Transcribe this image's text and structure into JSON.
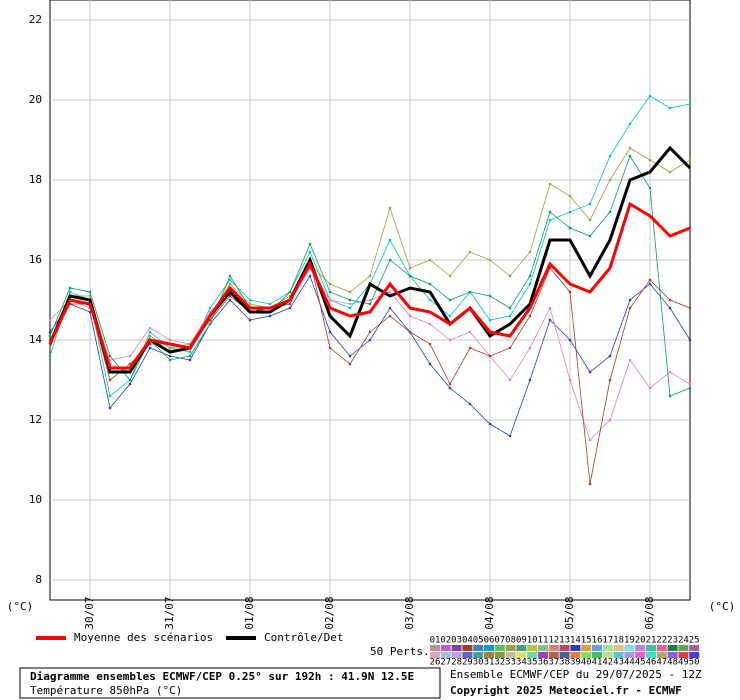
{
  "chart_data": {
    "type": "line",
    "ylabel_left": "(°C)",
    "ylabel_right": "(°C)",
    "categories": [
      null,
      null,
      "30/07",
      null,
      null,
      null,
      "31/07",
      null,
      null,
      null,
      "01/08",
      null,
      null,
      null,
      "02/08",
      null,
      null,
      null,
      "03/08",
      null,
      null,
      null,
      "04/08",
      null,
      null,
      null,
      "05/08",
      null,
      null,
      null,
      "06/08",
      null,
      null
    ],
    "ylim": [
      7.5,
      22.5
    ],
    "yticks": [
      8,
      10,
      12,
      14,
      16,
      18,
      20,
      22
    ],
    "grid": true,
    "series": [
      {
        "name": "01",
        "color": "#00c0c0",
        "values": [
          13.6,
          15.2,
          15.0,
          12.6,
          13.0,
          14.2,
          13.8,
          13.7,
          14.8,
          15.5,
          15.0,
          14.9,
          15.2,
          16.2,
          15.0,
          14.8,
          15.4,
          16.5,
          15.6,
          15.0,
          14.6,
          15.2,
          14.5,
          14.6,
          15.4,
          17.0,
          17.2,
          17.4,
          18.6,
          19.4,
          20.1,
          19.8,
          19.9
        ]
      },
      {
        "name": "02",
        "color": "#2040c0",
        "values": [
          14.2,
          14.9,
          14.7,
          12.3,
          12.9,
          13.8,
          13.6,
          13.5,
          14.4,
          15.0,
          14.5,
          14.6,
          14.8,
          15.6,
          14.2,
          13.6,
          14.0,
          14.8,
          14.2,
          13.4,
          12.8,
          12.4,
          11.9,
          11.6,
          13.0,
          14.5,
          14.0,
          13.2,
          13.6,
          15.0,
          15.4,
          14.8,
          14.0
        ]
      },
      {
        "name": "03",
        "color": "#e080c0",
        "values": [
          14.5,
          15.0,
          14.8,
          13.5,
          13.6,
          14.3,
          14.0,
          13.9,
          14.7,
          15.2,
          14.8,
          14.7,
          15.0,
          15.8,
          15.0,
          14.9,
          15.0,
          15.2,
          14.6,
          14.4,
          14.0,
          14.2,
          13.6,
          13.0,
          13.8,
          14.8,
          13.0,
          11.5,
          12.0,
          13.5,
          12.8,
          13.2,
          12.9
        ]
      },
      {
        "name": "04",
        "color": "#a0a040",
        "values": [
          13.8,
          15.1,
          15.1,
          13.4,
          13.2,
          14.1,
          13.8,
          13.9,
          14.6,
          15.4,
          14.9,
          14.8,
          15.1,
          15.9,
          15.4,
          15.2,
          15.6,
          17.3,
          15.8,
          16.0,
          15.6,
          16.2,
          16.0,
          15.6,
          16.2,
          17.9,
          17.6,
          17.0,
          18.0,
          18.8,
          18.5,
          18.2,
          18.5
        ]
      },
      {
        "name": "05",
        "color": "#a04020",
        "values": [
          14.0,
          14.9,
          14.9,
          13.0,
          13.4,
          13.9,
          13.9,
          13.8,
          14.5,
          15.1,
          14.7,
          14.8,
          14.9,
          16.0,
          13.8,
          13.4,
          14.2,
          14.6,
          14.2,
          13.9,
          12.9,
          13.8,
          13.6,
          13.8,
          14.6,
          15.8,
          15.2,
          10.4,
          13.0,
          14.8,
          15.5,
          15.0,
          14.8
        ]
      },
      {
        "name": "06",
        "color": "#00a060",
        "values": [
          14.1,
          15.3,
          15.2,
          13.6,
          13.0,
          14.0,
          13.5,
          13.6,
          14.4,
          15.6,
          14.8,
          14.7,
          15.2,
          16.4,
          15.2,
          15.0,
          14.9,
          16.0,
          15.6,
          15.4,
          15.0,
          15.2,
          15.1,
          14.8,
          15.6,
          17.2,
          16.8,
          16.6,
          17.2,
          18.6,
          17.8,
          12.6,
          12.8
        ]
      },
      {
        "name": "Contrôle/Det",
        "color": "#000000",
        "values": [
          13.9,
          15.1,
          15.0,
          13.2,
          13.2,
          14.0,
          13.7,
          13.8,
          14.6,
          15.2,
          14.7,
          14.7,
          15.0,
          16.0,
          14.6,
          14.1,
          15.4,
          15.1,
          15.3,
          15.2,
          14.4,
          14.8,
          14.1,
          14.4,
          14.9,
          16.5,
          16.5,
          15.6,
          16.5,
          18.0,
          18.2,
          18.8,
          18.3
        ]
      },
      {
        "name": "Moyenne des scénarios",
        "color": "#ff0000",
        "values": [
          13.9,
          15.0,
          14.9,
          13.3,
          13.3,
          14.0,
          13.9,
          13.8,
          14.6,
          15.3,
          14.8,
          14.8,
          15.0,
          15.9,
          14.8,
          14.6,
          14.7,
          15.4,
          14.8,
          14.7,
          14.4,
          14.8,
          14.2,
          14.1,
          14.8,
          15.9,
          15.4,
          15.2,
          15.8,
          17.4,
          17.1,
          16.6,
          16.8
        ]
      }
    ],
    "perts_label": "50 Perts.",
    "pert_labels": [
      "01",
      "02",
      "03",
      "04",
      "05",
      "06",
      "07",
      "08",
      "09",
      "10",
      "11",
      "12",
      "13",
      "14",
      "15",
      "16",
      "17",
      "18",
      "19",
      "20",
      "21",
      "22",
      "23",
      "24",
      "25",
      "26",
      "27",
      "28",
      "29",
      "30",
      "31",
      "32",
      "33",
      "34",
      "35",
      "36",
      "37",
      "38",
      "39",
      "40",
      "41",
      "42",
      "43",
      "44",
      "45",
      "46",
      "47",
      "48",
      "49",
      "50"
    ],
    "pert_colors": [
      "#c09090",
      "#c060c0",
      "#8040a0",
      "#a04020",
      "#4080c0",
      "#00a0c0",
      "#60c060",
      "#a0a040",
      "#40a080",
      "#c0c040",
      "#80c080",
      "#e08080",
      "#c04060",
      "#2040c0",
      "#e0a040",
      "#60a0e0",
      "#a0e0a0",
      "#e0c080",
      "#80e0e0",
      "#c080e0",
      "#40c0a0",
      "#e060a0",
      "#208040",
      "#60a060",
      "#a060a0",
      "#e0a0c0",
      "#a0c0e0",
      "#c0a0e0",
      "#6060c0",
      "#40a0a0",
      "#a08040",
      "#80a040",
      "#c0c0a0",
      "#e0e060",
      "#60e0a0",
      "#a040c0",
      "#c06040",
      "#4060a0",
      "#e08040",
      "#80e060",
      "#40c060",
      "#c0e080",
      "#60c0e0",
      "#a0a0e0",
      "#e060e0",
      "#40e0c0",
      "#c0a060",
      "#8060e0",
      "#e04040",
      "#4040e0"
    ],
    "title": "Diagramme ensembles ECMWF/CEP 0.25° sur 192h : 41.9N 12.5E",
    "subtitle": "Température 850hPa (°C)",
    "run_info": "Ensemble ECMWF/CEP du 29/07/2025 - 12Z",
    "copyright": "Copyright 2025 Meteociel.fr - ECMWF"
  }
}
